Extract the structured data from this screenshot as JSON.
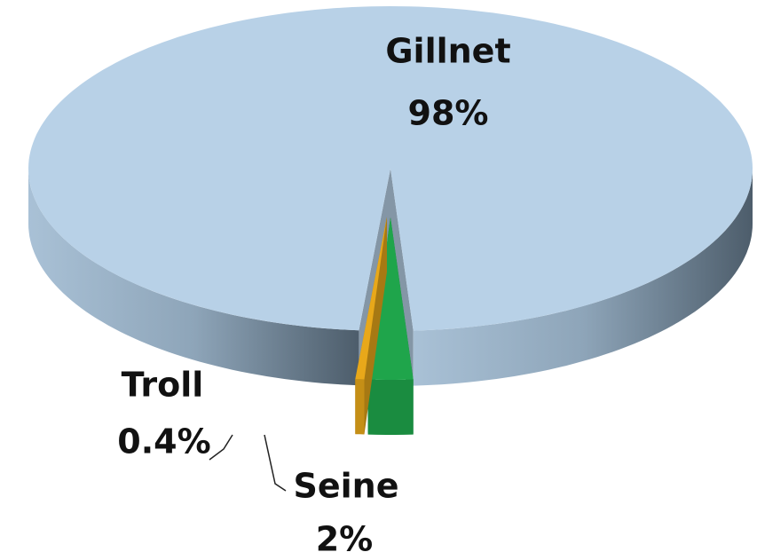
{
  "chart_data": {
    "type": "pie",
    "categories": [
      "Gillnet",
      "Seine",
      "Troll"
    ],
    "values": [
      98,
      2,
      0.4
    ],
    "value_labels": [
      "98%",
      "2%",
      "0.4%"
    ],
    "colors": [
      "#b8d1e7",
      "#1fa54b",
      "#e8a81a"
    ]
  }
}
